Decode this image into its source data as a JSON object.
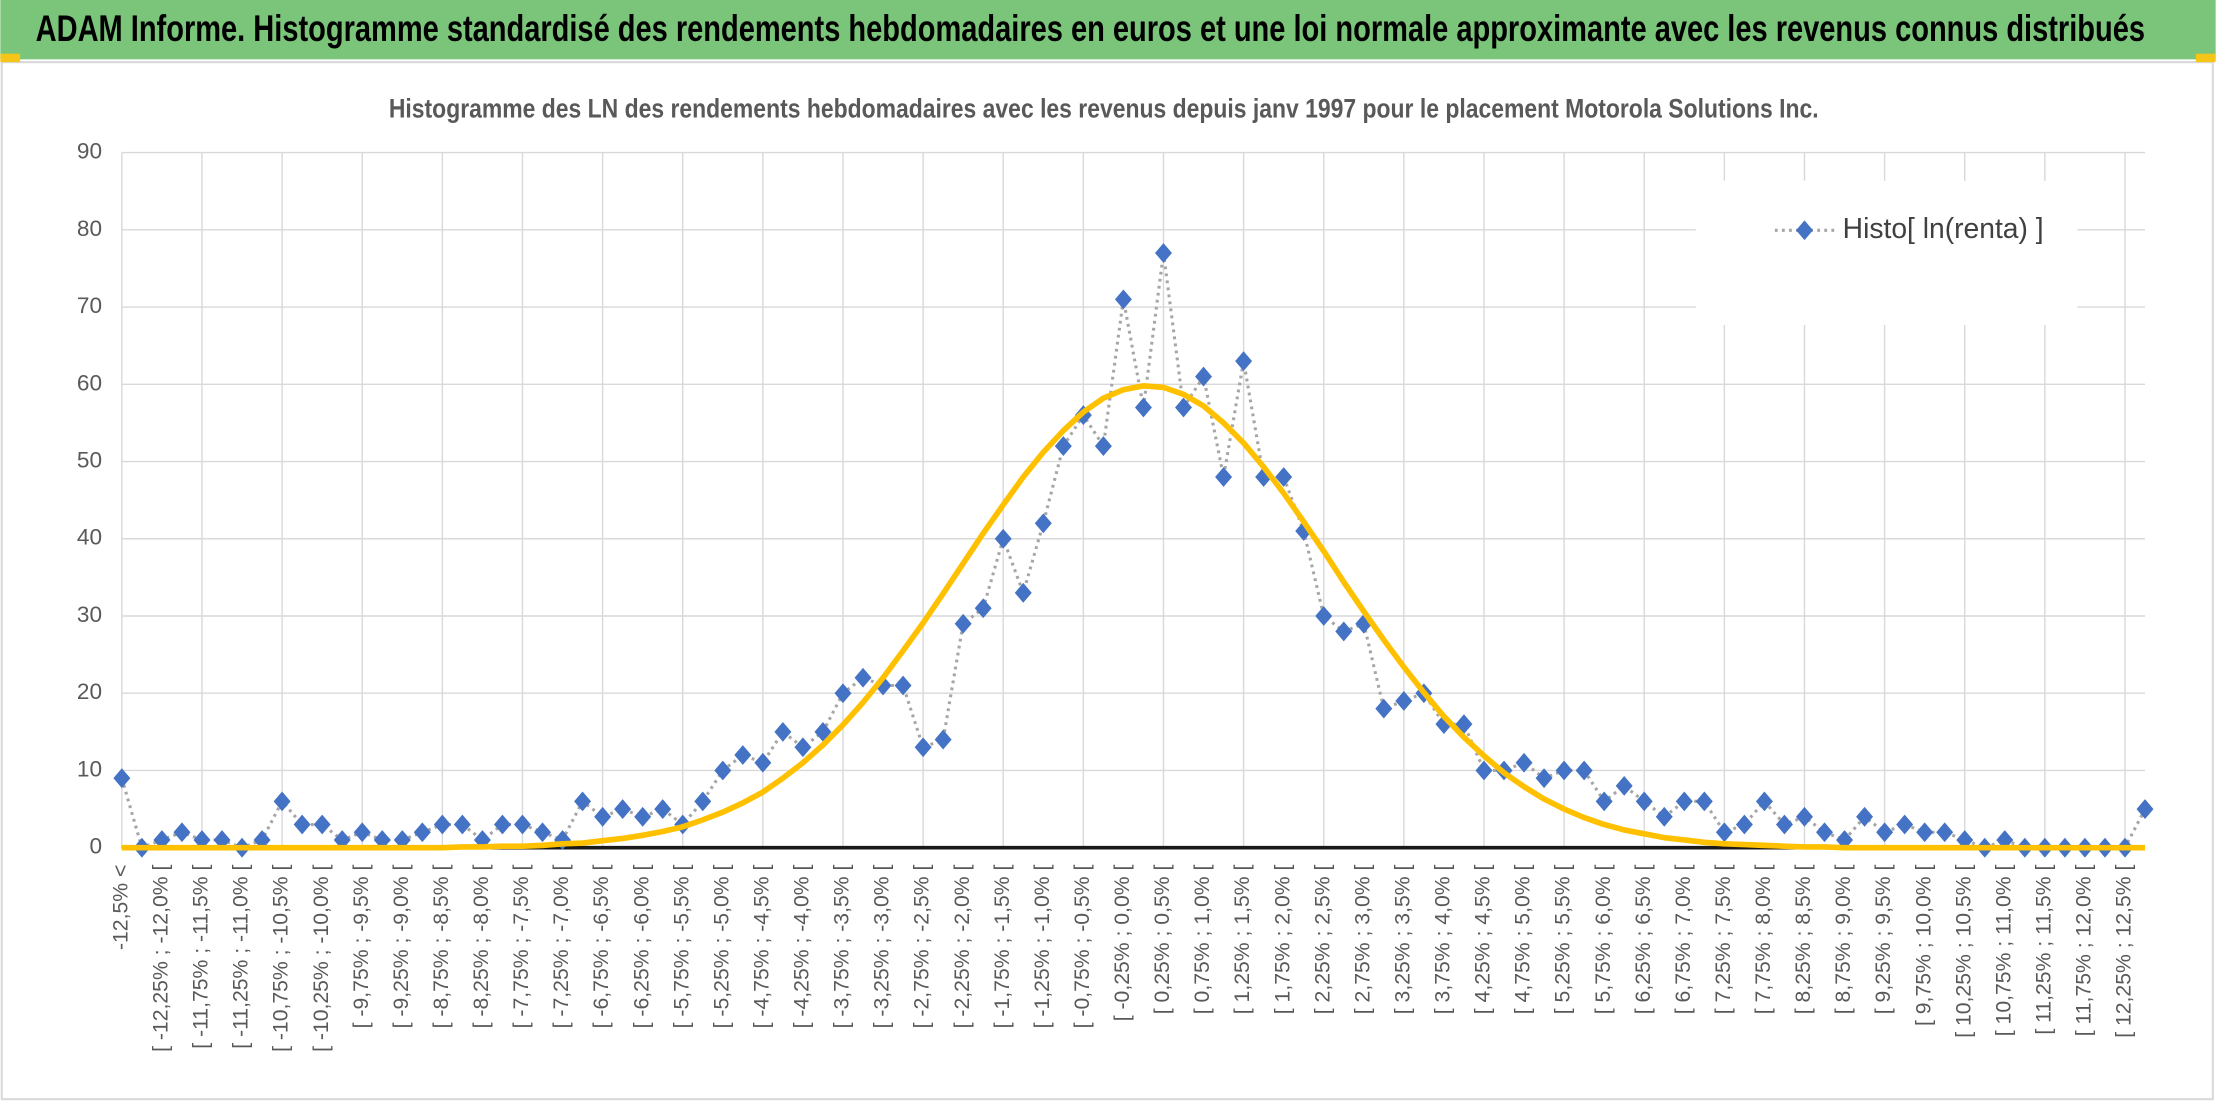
{
  "chart_data": {
    "type": "line",
    "title": "ADAM Informe. Histogramme standardisé des rendements hebdomadaires en euros et une loi normale approximante avec les revenus connus distribués",
    "subtitle": "Histogramme des LN des rendements hebdomadaires avec les revenus depuis janv 1997 pour le placement Motorola Solutions Inc.",
    "categories": [
      "-12,5% <",
      null,
      "[ -12,25% ; -12,0% [",
      null,
      "[ -11,75% ; -11,5% [",
      null,
      "[ -11,25% ; -11,0% [",
      null,
      "[ -10,75% ; -10,5% [",
      null,
      "[ -10,25% ; -10,0% [",
      null,
      "[ -9,75% ; -9,5% [",
      null,
      "[ -9,25% ; -9,0% [",
      null,
      "[ -8,75% ; -8,5% [",
      null,
      "[ -8,25% ; -8,0% [",
      null,
      "[ -7,75% ; -7,5% [",
      null,
      "[ -7,25% ; -7,0% [",
      null,
      "[ -6,75% ; -6,5% [",
      null,
      "[ -6,25% ; -6,0% [",
      null,
      "[ -5,75% ; -5,5% [",
      null,
      "[ -5,25% ; -5,0% [",
      null,
      "[ -4,75% ; -4,5% [",
      null,
      "[ -4,25% ; -4,0% [",
      null,
      "[ -3,75% ; -3,5% [",
      null,
      "[ -3,25% ; -3,0% [",
      null,
      "[ -2,75% ; -2,5% [",
      null,
      "[ -2,25% ; -2,0% [",
      null,
      "[ -1,75% ; -1,5% [",
      null,
      "[ -1,25% ; -1,0% [",
      null,
      "[ -0,75% ; -0,5% [",
      null,
      "[ -0,25% ; 0,0% [",
      null,
      "[ 0,25% ; 0,5% [",
      null,
      "[ 0,75% ; 1,0% [",
      null,
      "[ 1,25% ; 1,5% [",
      null,
      "[ 1,75% ; 2,0% [",
      null,
      "[ 2,25% ; 2,5% [",
      null,
      "[ 2,75% ; 3,0% [",
      null,
      "[ 3,25% ; 3,5% [",
      null,
      "[ 3,75% ; 4,0% [",
      null,
      "[ 4,25% ; 4,5% [",
      null,
      "[ 4,75% ; 5,0% [",
      null,
      "[ 5,25% ; 5,5% [",
      null,
      "[ 5,75% ; 6,0% [",
      null,
      "[ 6,25% ; 6,5% [",
      null,
      "[ 6,75% ; 7,0% [",
      null,
      "[ 7,25% ; 7,5% [",
      null,
      "[ 7,75% ; 8,0% [",
      null,
      "[ 8,25% ; 8,5% [",
      null,
      "[ 8,75% ; 9,0% [",
      null,
      "[ 9,25% ; 9,5% [",
      null,
      "[ 9,75% ; 10,0% [",
      null,
      "[ 10,25% ; 10,5% [",
      null,
      "[ 10,75% ; 11,0% [",
      null,
      "[ 11,25% ; 11,5% [",
      null,
      "[ 11,75% ; 12,0% [",
      null,
      "[ 12,25% ; 12,5% [",
      null
    ],
    "series": [
      {
        "name": "Histo[ ln(renta) ]",
        "color": "#4472c4",
        "line_color": "#a6a6a6",
        "marker": "diamond",
        "dash": "dotted",
        "values": [
          9,
          0,
          1,
          2,
          1,
          1,
          0,
          1,
          6,
          3,
          3,
          1,
          2,
          1,
          1,
          2,
          3,
          3,
          1,
          3,
          3,
          2,
          1,
          6,
          4,
          5,
          4,
          5,
          3,
          6,
          10,
          12,
          11,
          15,
          13,
          15,
          20,
          22,
          21,
          21,
          13,
          14,
          29,
          31,
          40,
          33,
          42,
          52,
          56,
          52,
          71,
          57,
          77,
          57,
          61,
          48,
          63,
          48,
          48,
          41,
          30,
          28,
          29,
          18,
          19,
          20,
          16,
          16,
          10,
          10,
          11,
          9,
          10,
          10,
          6,
          8,
          6,
          4,
          6,
          6,
          2,
          3,
          6,
          3,
          4,
          2,
          1,
          4,
          2,
          3,
          2,
          2,
          1,
          0,
          1,
          0,
          0,
          0,
          0,
          0,
          0,
          5
        ]
      },
      {
        "color": "#ffc000",
        "line_color": "#ffc000",
        "marker": "none",
        "dash": "solid",
        "values": [
          0,
          0,
          0,
          0,
          0,
          0,
          0,
          0,
          0,
          0,
          0,
          0,
          0,
          0,
          0,
          0,
          0,
          0.1,
          0.1,
          0.2,
          0.2,
          0.3,
          0.5,
          0.6,
          0.9,
          1.2,
          1.6,
          2.1,
          2.7,
          3.6,
          4.6,
          5.8,
          7.2,
          9.0,
          11.0,
          13.3,
          15.9,
          18.8,
          22.0,
          25.5,
          29.1,
          32.9,
          36.8,
          40.7,
          44.4,
          48.0,
          51.2,
          54.0,
          56.4,
          58.2,
          59.3,
          59.8,
          59.6,
          58.7,
          57.2,
          55.0,
          52.4,
          49.3,
          45.9,
          42.2,
          38.4,
          34.4,
          30.6,
          26.9,
          23.4,
          20.1,
          17.0,
          14.3,
          11.9,
          9.7,
          7.9,
          6.3,
          5.0,
          3.9,
          3.0,
          2.3,
          1.8,
          1.3,
          1.0,
          0.7,
          0.5,
          0.4,
          0.3,
          0.2,
          0.1,
          0.1,
          0,
          0,
          0,
          0,
          0,
          0,
          0,
          0,
          0,
          0,
          0,
          0,
          0,
          0,
          0,
          0
        ]
      }
    ],
    "ylim": [
      0,
      90
    ],
    "yticks": [
      0,
      10,
      20,
      30,
      40,
      50,
      60,
      70,
      80,
      90
    ],
    "grid": true,
    "legend": "top-right"
  }
}
